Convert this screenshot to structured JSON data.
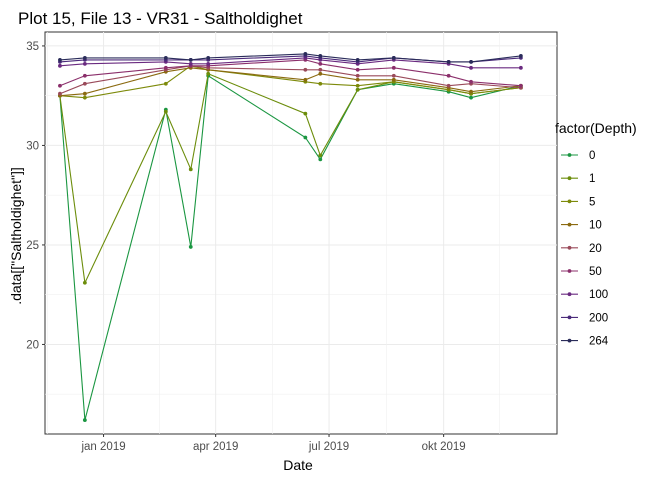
{
  "chart_data": {
    "type": "line",
    "title": "Plot 15, File 13 - VR31  -  Saltholdighet",
    "xlabel": "Date",
    "ylabel": ".data[[\"Saltholdighet\"]]",
    "x_axis_type": "date",
    "xlim": [
      "2018-11-15",
      "2019-12-31"
    ],
    "ylim": [
      15.5,
      35.7
    ],
    "x_ticks": [
      {
        "date": "2019-01-01",
        "label": "jan 2019"
      },
      {
        "date": "2019-04-01",
        "label": "apr 2019"
      },
      {
        "date": "2019-07-01",
        "label": "jul 2019"
      },
      {
        "date": "2019-10-01",
        "label": "okt 2019"
      }
    ],
    "y_ticks": [
      20,
      25,
      30,
      35
    ],
    "grid": true,
    "legend": {
      "title": "factor(Depth)",
      "position": "right"
    },
    "x": [
      "2018-11-27",
      "2018-12-17",
      "2019-02-20",
      "2019-03-12",
      "2019-03-26",
      "2019-06-12",
      "2019-06-24",
      "2019-07-24",
      "2019-08-22",
      "2019-10-05",
      "2019-10-23",
      "2019-12-02"
    ],
    "series": [
      {
        "name": "0",
        "color": "#1a9641",
        "values": [
          32.5,
          16.2,
          31.8,
          24.9,
          33.5,
          30.4,
          29.3,
          32.8,
          33.1,
          32.7,
          32.4,
          33.0
        ]
      },
      {
        "name": "1",
        "color": "#6c8d0b",
        "values": [
          32.5,
          23.1,
          31.7,
          28.8,
          33.6,
          31.6,
          29.5,
          32.8,
          33.2,
          32.8,
          32.6,
          32.9
        ]
      },
      {
        "name": "5",
        "color": "#7d8a0a",
        "values": [
          32.5,
          32.4,
          33.1,
          34.0,
          33.8,
          33.2,
          33.1,
          33.0,
          33.2,
          32.8,
          32.6,
          32.9
        ]
      },
      {
        "name": "10",
        "color": "#8b6a10",
        "values": [
          32.5,
          32.6,
          33.7,
          33.9,
          33.8,
          33.3,
          33.6,
          33.3,
          33.3,
          32.9,
          32.7,
          33.0
        ]
      },
      {
        "name": "20",
        "color": "#9a4a5a",
        "values": [
          32.6,
          33.1,
          33.8,
          34.0,
          33.9,
          33.8,
          33.8,
          33.5,
          33.5,
          33.0,
          33.1,
          32.9
        ]
      },
      {
        "name": "50",
        "color": "#8b2f6b",
        "values": [
          33.0,
          33.5,
          33.9,
          34.0,
          34.0,
          34.3,
          34.1,
          33.8,
          33.9,
          33.5,
          33.2,
          33.0
        ]
      },
      {
        "name": "100",
        "color": "#6a2a80",
        "values": [
          34.0,
          34.1,
          34.2,
          34.1,
          34.1,
          34.4,
          34.3,
          34.1,
          34.3,
          34.1,
          33.9,
          33.9
        ]
      },
      {
        "name": "200",
        "color": "#4a2a7a",
        "values": [
          34.2,
          34.3,
          34.3,
          34.3,
          34.3,
          34.5,
          34.4,
          34.2,
          34.4,
          34.2,
          34.2,
          34.4
        ]
      },
      {
        "name": "264",
        "color": "#2a2c5a",
        "values": [
          34.3,
          34.4,
          34.4,
          34.3,
          34.4,
          34.6,
          34.5,
          34.3,
          34.4,
          34.2,
          34.2,
          34.5
        ]
      }
    ]
  }
}
